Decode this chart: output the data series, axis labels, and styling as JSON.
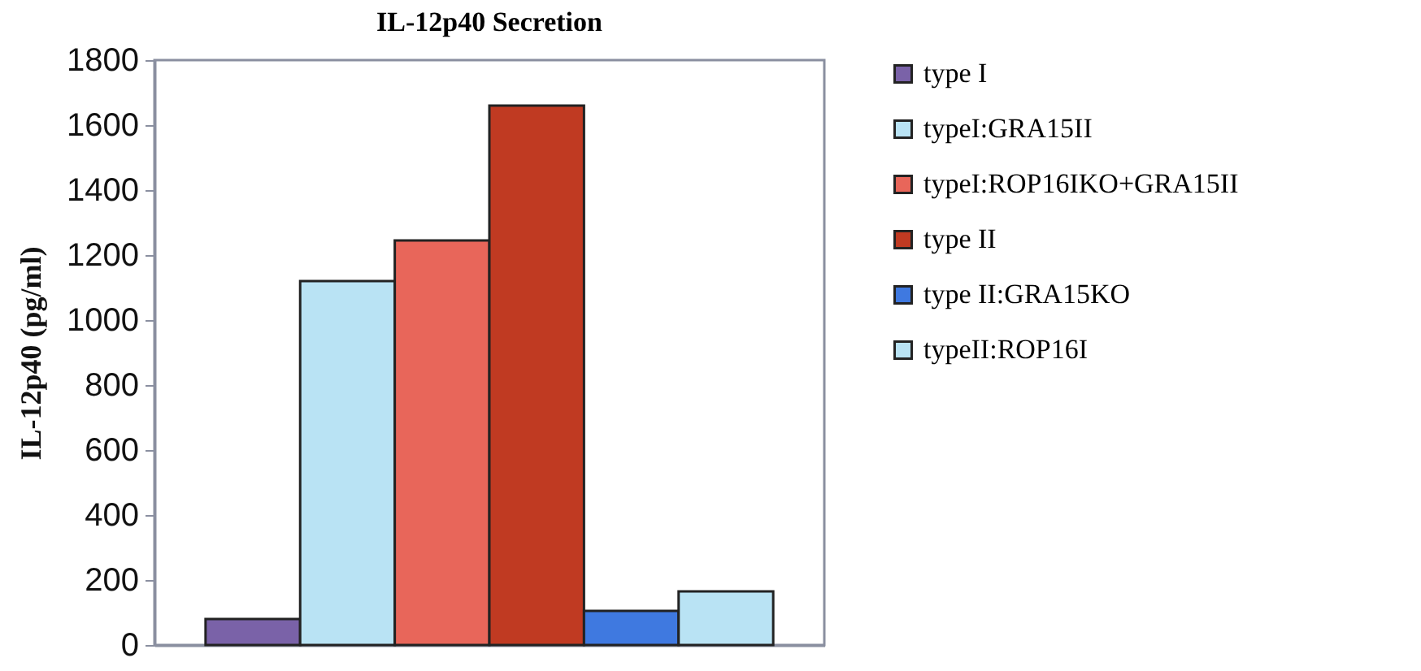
{
  "chart_data": {
    "type": "bar",
    "title": "IL-12p40 Secretion",
    "ylabel": "IL-12p40 (pg/ml)",
    "categories": [
      null
    ],
    "series": [
      {
        "name": "type I",
        "color": "#7a62a8",
        "values": [
          80
        ]
      },
      {
        "name": "typeI:GRA15II",
        "color": "#b9e3f4",
        "values": [
          1120
        ]
      },
      {
        "name": "typeI:ROP16IKO+GRA15II",
        "color": "#e8665a",
        "values": [
          1245
        ]
      },
      {
        "name": "type II",
        "color": "#c03a22",
        "values": [
          1660
        ]
      },
      {
        "name": "type II:GRA15KO",
        "color": "#3f79e0",
        "values": [
          105
        ]
      },
      {
        "name": "typeII:ROP16I",
        "color": "#b9e3f4",
        "values": [
          165
        ]
      }
    ],
    "ylim": [
      0,
      1800
    ],
    "yticks": [
      0,
      200,
      400,
      600,
      800,
      1000,
      1200,
      1400,
      1600,
      1800
    ],
    "grid": false,
    "legend": "right"
  }
}
